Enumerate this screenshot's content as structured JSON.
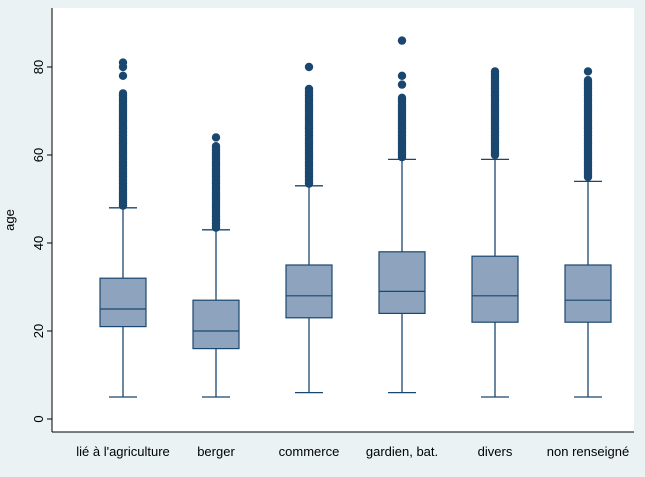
{
  "chart_data": {
    "type": "box",
    "ylabel": "age",
    "xlabel": "",
    "title": "",
    "ylim": [
      -3,
      90
    ],
    "yticks": [
      0,
      20,
      40,
      60,
      80
    ],
    "grid": false,
    "categories": [
      "lié à l'agriculture",
      "berger",
      "commerce",
      "gardien, bat.",
      "divers",
      "non renseigné"
    ],
    "boxes": [
      {
        "min": 5,
        "q1": 21,
        "median": 25,
        "q3": 32,
        "whisker_high": 48,
        "outliers_low": 48.5,
        "outliers_high": 74,
        "extreme_outliers": [
          78,
          80,
          81
        ]
      },
      {
        "min": 5,
        "q1": 16,
        "median": 20,
        "q3": 27,
        "whisker_high": 43,
        "outliers_low": 43.5,
        "outliers_high": 62,
        "extreme_outliers": [
          64
        ]
      },
      {
        "min": 6,
        "q1": 23,
        "median": 28,
        "q3": 35,
        "whisker_high": 53,
        "outliers_low": 53.5,
        "outliers_high": 75,
        "extreme_outliers": [
          80
        ]
      },
      {
        "min": 6,
        "q1": 24,
        "median": 29,
        "q3": 38,
        "whisker_high": 59,
        "outliers_low": 59.5,
        "outliers_high": 73,
        "extreme_outliers": [
          76,
          78,
          86
        ]
      },
      {
        "min": 5,
        "q1": 22,
        "median": 28,
        "q3": 37,
        "whisker_high": 59,
        "outliers_low": 60,
        "outliers_high": 79,
        "extreme_outliers": []
      },
      {
        "min": 5,
        "q1": 22,
        "median": 27,
        "q3": 35,
        "whisker_high": 54,
        "outliers_low": 55,
        "outliers_high": 77,
        "extreme_outliers": [
          79
        ]
      }
    ],
    "colors": {
      "box_fill": "#8ea4be",
      "box_stroke": "#1a476f",
      "marker": "#1a476f",
      "plot_bg": "#ffffff",
      "outer_bg": "#eaf2f3"
    }
  }
}
